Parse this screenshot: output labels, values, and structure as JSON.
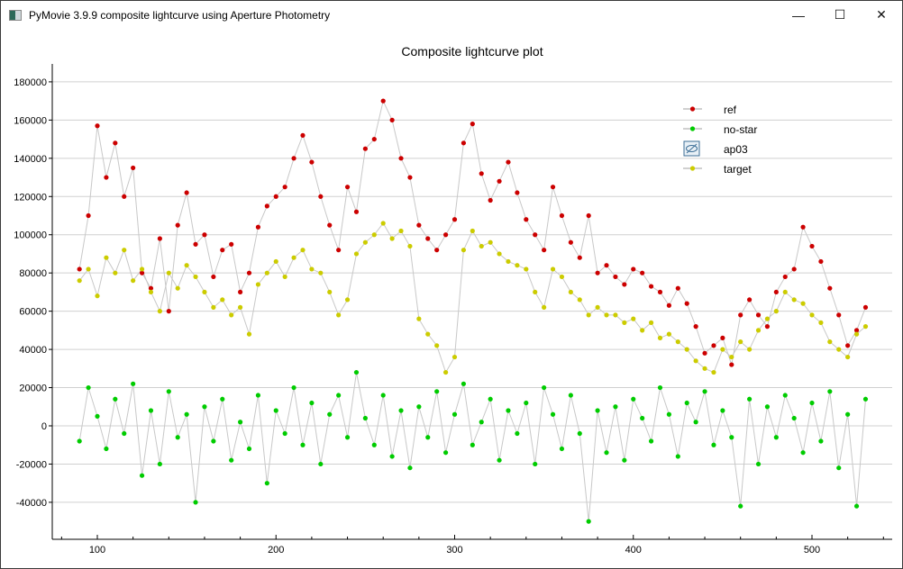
{
  "window": {
    "title": "PyMovie 3.9.9 composite lightcurve using Aperture Photometry",
    "minimize": "—",
    "maximize": "☐",
    "close": "✕"
  },
  "chart_data": {
    "type": "scatter",
    "title": "Composite lightcurve plot",
    "xlabel": "",
    "ylabel": "",
    "xlim": [
      72,
      545
    ],
    "ylim": [
      -58000,
      190000
    ],
    "xticks": [
      100,
      200,
      300,
      400,
      500
    ],
    "yticks": [
      -40000,
      -20000,
      0,
      20000,
      40000,
      60000,
      80000,
      100000,
      120000,
      140000,
      160000,
      180000
    ],
    "grid": "horizontal",
    "legend_position": "top-right",
    "x_start": 90,
    "x_step": 5,
    "series": [
      {
        "name": "ref",
        "color": "#cc0000",
        "values": [
          82000,
          110000,
          157000,
          130000,
          148000,
          120000,
          135000,
          80000,
          72000,
          98000,
          60000,
          105000,
          122000,
          95000,
          100000,
          78000,
          92000,
          95000,
          70000,
          80000,
          104000,
          115000,
          120000,
          125000,
          140000,
          152000,
          138000,
          120000,
          105000,
          92000,
          125000,
          112000,
          145000,
          150000,
          170000,
          160000,
          140000,
          130000,
          105000,
          98000,
          92000,
          100000,
          108000,
          148000,
          158000,
          132000,
          118000,
          128000,
          138000,
          122000,
          108000,
          100000,
          92000,
          125000,
          110000,
          96000,
          88000,
          110000,
          80000,
          84000,
          78000,
          74000,
          82000,
          80000,
          73000,
          70000,
          63000,
          72000,
          64000,
          52000,
          38000,
          42000,
          46000,
          32000,
          58000,
          66000,
          58000,
          52000,
          70000,
          78000,
          82000,
          104000,
          94000,
          86000,
          72000,
          58000,
          42000,
          50000,
          62000
        ]
      },
      {
        "name": "no-star",
        "color": "#00cc00",
        "values": [
          -8000,
          20000,
          5000,
          -12000,
          14000,
          -4000,
          22000,
          -26000,
          8000,
          -20000,
          18000,
          -6000,
          6000,
          -40000,
          10000,
          -8000,
          14000,
          -18000,
          2000,
          -12000,
          16000,
          -30000,
          8000,
          -4000,
          20000,
          -10000,
          12000,
          -20000,
          6000,
          16000,
          -6000,
          28000,
          4000,
          -10000,
          16000,
          -16000,
          8000,
          -22000,
          10000,
          -6000,
          18000,
          -14000,
          6000,
          22000,
          -10000,
          2000,
          14000,
          -18000,
          8000,
          -4000,
          12000,
          -20000,
          20000,
          6000,
          -12000,
          16000,
          -4000,
          -50000,
          8000,
          -14000,
          10000,
          -18000,
          14000,
          4000,
          -8000,
          20000,
          6000,
          -16000,
          12000,
          2000,
          18000,
          -10000,
          8000,
          -6000,
          -42000,
          14000,
          -20000,
          10000,
          -6000,
          16000,
          4000,
          -14000,
          12000,
          -8000,
          18000,
          -22000,
          6000,
          -42000,
          14000
        ]
      },
      {
        "name": "ap03",
        "color": "#3c6e96",
        "hidden": true,
        "values": []
      },
      {
        "name": "target",
        "color": "#cccc00",
        "values": [
          76000,
          82000,
          68000,
          88000,
          80000,
          92000,
          76000,
          82000,
          70000,
          60000,
          80000,
          72000,
          84000,
          78000,
          70000,
          62000,
          66000,
          58000,
          62000,
          48000,
          74000,
          80000,
          86000,
          78000,
          88000,
          92000,
          82000,
          80000,
          70000,
          58000,
          66000,
          90000,
          96000,
          100000,
          106000,
          98000,
          102000,
          94000,
          56000,
          48000,
          42000,
          28000,
          36000,
          92000,
          102000,
          94000,
          96000,
          90000,
          86000,
          84000,
          82000,
          70000,
          62000,
          82000,
          78000,
          70000,
          66000,
          58000,
          62000,
          58000,
          58000,
          54000,
          56000,
          50000,
          54000,
          46000,
          48000,
          44000,
          40000,
          34000,
          30000,
          28000,
          40000,
          36000,
          44000,
          40000,
          50000,
          56000,
          60000,
          70000,
          66000,
          64000,
          58000,
          54000,
          44000,
          40000,
          36000,
          48000,
          52000
        ]
      }
    ]
  }
}
